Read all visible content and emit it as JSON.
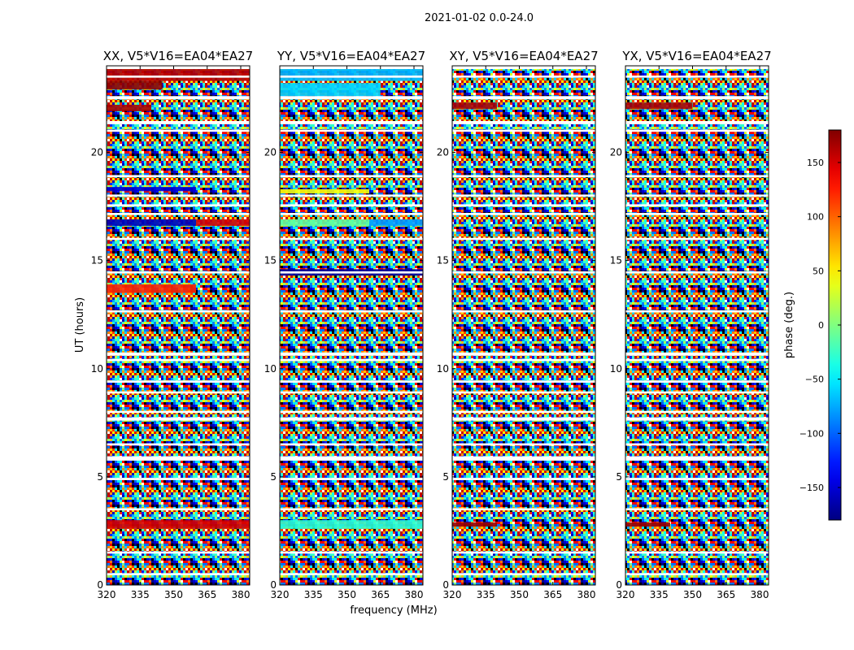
{
  "figure_title": "2021-01-02 0.0-24.0",
  "colorbar": {
    "label": "phase (deg.)",
    "min": -180,
    "max": 180,
    "ticks": [
      150,
      100,
      50,
      0,
      -50,
      -100,
      -150
    ],
    "tick_labels": [
      "150",
      "100",
      "50",
      "0",
      "−50",
      "−100",
      "−150"
    ],
    "colormap": "jet",
    "colors": [
      "#00007f",
      "#0000ff",
      "#0080ff",
      "#00ffff",
      "#80ff80",
      "#ffff00",
      "#ff8000",
      "#ff0000",
      "#7f0000"
    ]
  },
  "chart_data": [
    {
      "type": "heatmap",
      "title": "XX, V5*V16=EA04*EA27",
      "polarization": "XX",
      "xlabel": "frequency (MHz)",
      "ylabel": "UT (hours)",
      "xlim": [
        320,
        384
      ],
      "ylim": [
        0,
        24
      ],
      "xticks": [
        320,
        335,
        350,
        365,
        380
      ],
      "xtick_labels": [
        "320",
        "335",
        "350",
        "365",
        "380"
      ],
      "yticks": [
        0,
        5,
        10,
        15,
        20
      ],
      "ytick_labels": [
        "0",
        "5",
        "10",
        "15",
        "20"
      ],
      "coherent_bands": [
        {
          "t": [
            23.3,
            23.9
          ],
          "f": [
            320,
            384
          ],
          "phase": 160
        },
        {
          "t": [
            22.9,
            23.3
          ],
          "f": [
            320,
            345
          ],
          "phase": 175
        },
        {
          "t": [
            21.9,
            22.2
          ],
          "f": [
            320,
            340
          ],
          "phase": 165
        },
        {
          "t": [
            18.2,
            18.4
          ],
          "f": [
            320,
            360
          ],
          "phase": -150
        },
        {
          "t": [
            16.6,
            16.9
          ],
          "f": [
            320,
            360
          ],
          "phase": -160
        },
        {
          "t": [
            16.6,
            16.9
          ],
          "f": [
            360,
            384
          ],
          "phase": 150
        },
        {
          "t": [
            13.5,
            13.9
          ],
          "f": [
            320,
            360
          ],
          "phase": 120
        },
        {
          "t": [
            2.6,
            3.0
          ],
          "f": [
            320,
            384
          ],
          "phase": 150
        }
      ]
    },
    {
      "type": "heatmap",
      "title": "YY, V5*V16=EA04*EA27",
      "polarization": "YY",
      "xlabel": "frequency (MHz)",
      "ylabel": "UT (hours)",
      "xlim": [
        320,
        384
      ],
      "ylim": [
        0,
        24
      ],
      "xticks": [
        320,
        335,
        350,
        365,
        380
      ],
      "xtick_labels": [
        "320",
        "335",
        "350",
        "365",
        "380"
      ],
      "yticks": [
        0,
        5,
        10,
        15,
        20
      ],
      "ytick_labels": [
        "0",
        "5",
        "10",
        "15",
        "20"
      ],
      "coherent_bands": [
        {
          "t": [
            23.3,
            23.9
          ],
          "f": [
            320,
            384
          ],
          "phase": -70
        },
        {
          "t": [
            22.6,
            23.2
          ],
          "f": [
            320,
            365
          ],
          "phase": -60
        },
        {
          "t": [
            18.1,
            18.3
          ],
          "f": [
            320,
            360
          ],
          "phase": 40
        },
        {
          "t": [
            16.6,
            16.9
          ],
          "f": [
            320,
            360
          ],
          "phase": -10
        },
        {
          "t": [
            16.6,
            16.9
          ],
          "f": [
            360,
            384
          ],
          "phase": -80
        },
        {
          "t": [
            14.3,
            14.6
          ],
          "f": [
            320,
            384
          ],
          "phase": -170
        },
        {
          "t": [
            2.6,
            3.0
          ],
          "f": [
            320,
            384
          ],
          "phase": -30
        }
      ]
    },
    {
      "type": "heatmap",
      "title": "XY, V5*V16=EA04*EA27",
      "polarization": "XY",
      "xlabel": "frequency (MHz)",
      "ylabel": "UT (hours)",
      "xlim": [
        320,
        384
      ],
      "ylim": [
        0,
        24
      ],
      "xticks": [
        320,
        335,
        350,
        365,
        380
      ],
      "xtick_labels": [
        "320",
        "335",
        "350",
        "365",
        "380"
      ],
      "yticks": [
        0,
        5,
        10,
        15,
        20
      ],
      "ytick_labels": [
        "0",
        "5",
        "10",
        "15",
        "20"
      ],
      "coherent_bands": [
        {
          "t": [
            22.0,
            22.3
          ],
          "f": [
            320,
            340
          ],
          "phase": 165
        },
        {
          "t": [
            2.7,
            2.9
          ],
          "f": [
            320,
            340
          ],
          "phase": 170
        }
      ]
    },
    {
      "type": "heatmap",
      "title": "YX, V5*V16=EA04*EA27",
      "polarization": "YX",
      "xlabel": "frequency (MHz)",
      "ylabel": "UT (hours)",
      "xlim": [
        320,
        384
      ],
      "ylim": [
        0,
        24
      ],
      "xticks": [
        320,
        335,
        350,
        365,
        380
      ],
      "xtick_labels": [
        "320",
        "335",
        "350",
        "365",
        "380"
      ],
      "yticks": [
        0,
        5,
        10,
        15,
        20
      ],
      "ytick_labels": [
        "0",
        "5",
        "10",
        "15",
        "20"
      ],
      "coherent_bands": [
        {
          "t": [
            22.0,
            22.3
          ],
          "f": [
            320,
            350
          ],
          "phase": 165
        },
        {
          "t": [
            2.7,
            2.9
          ],
          "f": [
            320,
            340
          ],
          "phase": 170
        }
      ]
    }
  ],
  "flagged_time_ranges": [
    [
      23.85,
      24.0
    ],
    [
      23.45,
      23.55
    ],
    [
      22.45,
      22.6
    ],
    [
      21.3,
      21.45
    ],
    [
      20.95,
      21.05
    ],
    [
      18.85,
      18.95
    ],
    [
      17.95,
      18.05
    ],
    [
      17.5,
      17.6
    ],
    [
      17.1,
      17.2
    ],
    [
      15.95,
      16.05
    ],
    [
      14.4,
      14.5
    ],
    [
      12.6,
      12.7
    ],
    [
      10.6,
      10.75
    ],
    [
      10.35,
      10.45
    ],
    [
      9.35,
      9.45
    ],
    [
      8.85,
      8.95
    ],
    [
      7.95,
      8.05
    ],
    [
      7.6,
      7.75
    ],
    [
      6.45,
      6.55
    ],
    [
      5.75,
      5.95
    ],
    [
      4.85,
      4.95
    ],
    [
      3.45,
      3.55
    ],
    [
      1.45,
      1.55
    ],
    [
      0.45,
      0.55
    ]
  ]
}
